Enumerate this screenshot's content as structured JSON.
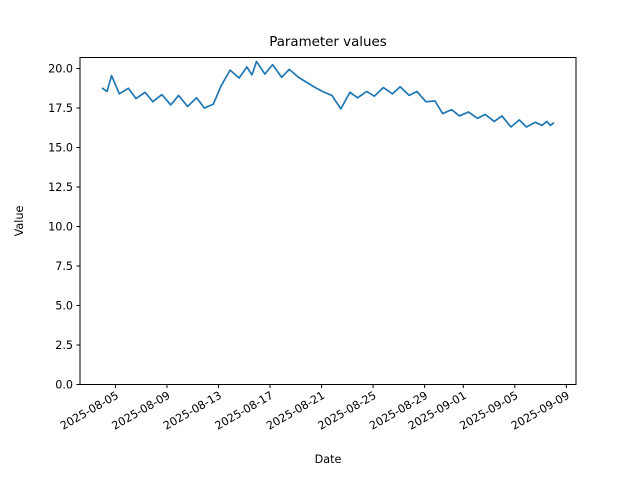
{
  "figure": {
    "background": "#ffffff",
    "plot_background": "#ffffff",
    "spine_color": "#000000"
  },
  "chart_data": {
    "type": "line",
    "title": "Parameter values",
    "xlabel": "Date",
    "ylabel": "Value",
    "legend": "none",
    "grid": "off",
    "line_color": "#1f77b4",
    "start_date": "2025-08-04",
    "x_tick_labels": [
      "2025-08-05",
      "2025-08-09",
      "2025-08-13",
      "2025-08-17",
      "2025-08-21",
      "2025-08-25",
      "2025-08-29",
      "2025-09-01",
      "2025-09-05",
      "2025-09-09"
    ],
    "y_tick_labels": [
      "0.0",
      "2.5",
      "5.0",
      "7.5",
      "10.0",
      "12.5",
      "15.0",
      "17.5",
      "20.0"
    ],
    "xlim_days": [
      -1.75,
      36.75
    ],
    "ylim": [
      0,
      20.7
    ],
    "x_unit": "days since start_date",
    "series": [
      {
        "name": "Parameter value",
        "points": [
          [
            0.0,
            18.75
          ],
          [
            0.35,
            18.55
          ],
          [
            0.7,
            19.55
          ],
          [
            1.3,
            18.4
          ],
          [
            2.0,
            18.75
          ],
          [
            2.6,
            18.1
          ],
          [
            3.3,
            18.5
          ],
          [
            3.9,
            17.9
          ],
          [
            4.6,
            18.35
          ],
          [
            5.3,
            17.7
          ],
          [
            5.9,
            18.3
          ],
          [
            6.6,
            17.6
          ],
          [
            7.3,
            18.15
          ],
          [
            7.9,
            17.5
          ],
          [
            8.6,
            17.75
          ],
          [
            9.2,
            18.9
          ],
          [
            9.9,
            19.9
          ],
          [
            10.6,
            19.4
          ],
          [
            11.2,
            20.1
          ],
          [
            11.6,
            19.6
          ],
          [
            11.95,
            20.45
          ],
          [
            12.6,
            19.65
          ],
          [
            13.2,
            20.25
          ],
          [
            13.9,
            19.45
          ],
          [
            14.5,
            19.95
          ],
          [
            15.2,
            19.45
          ],
          [
            15.9,
            19.1
          ],
          [
            16.5,
            18.8
          ],
          [
            17.2,
            18.5
          ],
          [
            17.8,
            18.3
          ],
          [
            18.5,
            17.45
          ],
          [
            19.2,
            18.5
          ],
          [
            19.8,
            18.15
          ],
          [
            20.5,
            18.55
          ],
          [
            21.1,
            18.25
          ],
          [
            21.8,
            18.8
          ],
          [
            22.5,
            18.4
          ],
          [
            23.1,
            18.85
          ],
          [
            23.8,
            18.3
          ],
          [
            24.4,
            18.55
          ],
          [
            25.1,
            17.9
          ],
          [
            25.8,
            17.95
          ],
          [
            26.4,
            17.15
          ],
          [
            27.1,
            17.4
          ],
          [
            27.7,
            17.0
          ],
          [
            28.4,
            17.25
          ],
          [
            29.1,
            16.85
          ],
          [
            29.7,
            17.1
          ],
          [
            30.4,
            16.65
          ],
          [
            31.0,
            17.0
          ],
          [
            31.7,
            16.3
          ],
          [
            32.35,
            16.75
          ],
          [
            32.9,
            16.3
          ],
          [
            33.6,
            16.6
          ],
          [
            34.1,
            16.4
          ],
          [
            34.5,
            16.65
          ],
          [
            34.75,
            16.4
          ],
          [
            35.0,
            16.55
          ]
        ]
      }
    ]
  }
}
